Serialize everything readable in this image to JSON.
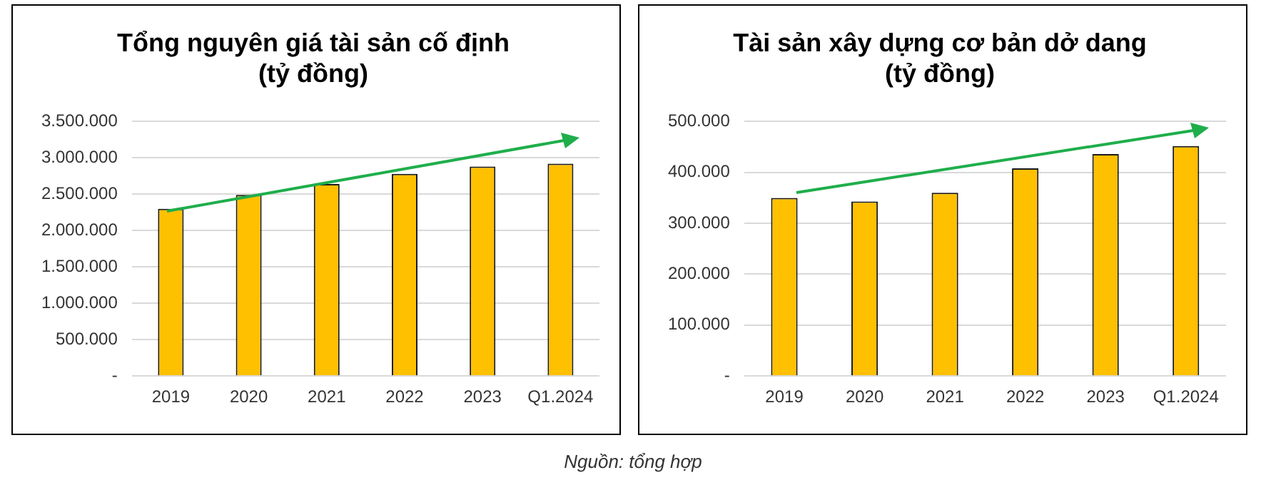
{
  "chart_data": [
    {
      "type": "bar",
      "title": "Tổng nguyên giá tài sản cố định (tỷ đồng)",
      "categories": [
        "2019",
        "2020",
        "2021",
        "2022",
        "2023",
        "Q1.2024"
      ],
      "values": [
        2300000,
        2490000,
        2640000,
        2780000,
        2880000,
        2920000
      ],
      "color": "#ffc000",
      "ylim": [
        0,
        3500000
      ],
      "yticks": [
        {
          "value": 0,
          "label": "-"
        },
        {
          "value": 500000,
          "label": "500.000"
        },
        {
          "value": 1000000,
          "label": "1.000.000"
        },
        {
          "value": 1500000,
          "label": "1.500.000"
        },
        {
          "value": 2000000,
          "label": "2.000.000"
        },
        {
          "value": 2500000,
          "label": "2.500.000"
        },
        {
          "value": 3000000,
          "label": "3.000.000"
        },
        {
          "value": 3500000,
          "label": "3.500.000"
        }
      ],
      "grid": "y",
      "legend": false
    },
    {
      "type": "bar",
      "title": "Tài sản xây dựng cơ bản dở dang (tỷ đồng)",
      "categories": [
        "2019",
        "2020",
        "2021",
        "2022",
        "2023",
        "Q1.2024"
      ],
      "values": [
        350000,
        343000,
        360000,
        408000,
        436000,
        452000
      ],
      "color": "#ffc000",
      "ylim": [
        0,
        500000
      ],
      "yticks": [
        {
          "value": 0,
          "label": "-"
        },
        {
          "value": 100000,
          "label": "100.000"
        },
        {
          "value": 200000,
          "label": "200.000"
        },
        {
          "value": 300000,
          "label": "300.000"
        },
        {
          "value": 400000,
          "label": "400.000"
        },
        {
          "value": 500000,
          "label": "500.000"
        }
      ],
      "grid": "y",
      "legend": false,
      "annotations": [
        "Nguồn: tổng hợp"
      ]
    }
  ]
}
